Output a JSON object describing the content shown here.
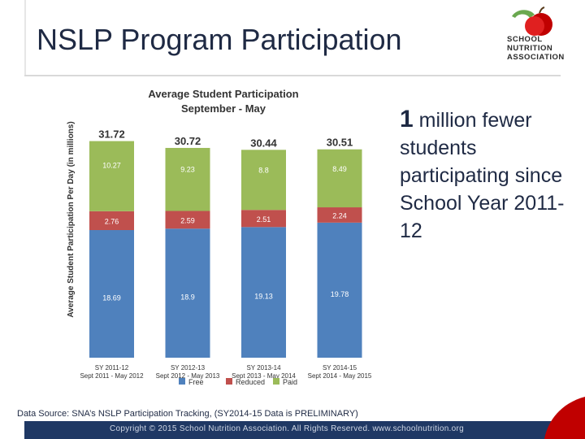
{
  "slide": {
    "title": "NSLP Program Participation",
    "callout_big": "1",
    "callout_rest": "million fewer students participating since School Year 2011-12",
    "source": "Data Source: SNA’s NSLP Participation Tracking, (SY2014-15 Data is PRELIMINARY)",
    "footer": "Copyright © 2015 School Nutrition Association. All Rights Reserved. www.schoolnutrition.org"
  },
  "logo": {
    "icon": "apple-icon",
    "line1": "SCHOOL",
    "line2": "NUTRITION",
    "line3": "ASSOCIATION"
  },
  "colors": {
    "free": "#4f81bd",
    "reduced": "#c0504d",
    "paid": "#9bbb59",
    "title": "#1f2a44",
    "footer": "#1f3864"
  },
  "chart_data": {
    "type": "bar",
    "stacked": true,
    "title": "Average Student Participation",
    "subtitle": "September - May",
    "ylabel": "Average Student Participation Per Day (in millions)",
    "categories": [
      "SY 2011-12",
      "SY 2012-13",
      "SY 2013-14",
      "SY 2014-15"
    ],
    "category_sublabels": [
      "Sept 2011 - May 2012",
      "Sept 2012 - May 2013",
      "Sept 2013 - May 2014",
      "Sept 2014 - May 2015"
    ],
    "series": [
      {
        "name": "Free",
        "values": [
          18.69,
          18.9,
          19.13,
          19.78
        ]
      },
      {
        "name": "Reduced",
        "values": [
          2.76,
          2.59,
          2.51,
          2.24
        ]
      },
      {
        "name": "Paid",
        "values": [
          10.27,
          9.23,
          8.8,
          8.49
        ]
      }
    ],
    "totals": [
      31.72,
      30.72,
      30.44,
      30.51
    ],
    "legend_position": "bottom",
    "grid": false
  }
}
